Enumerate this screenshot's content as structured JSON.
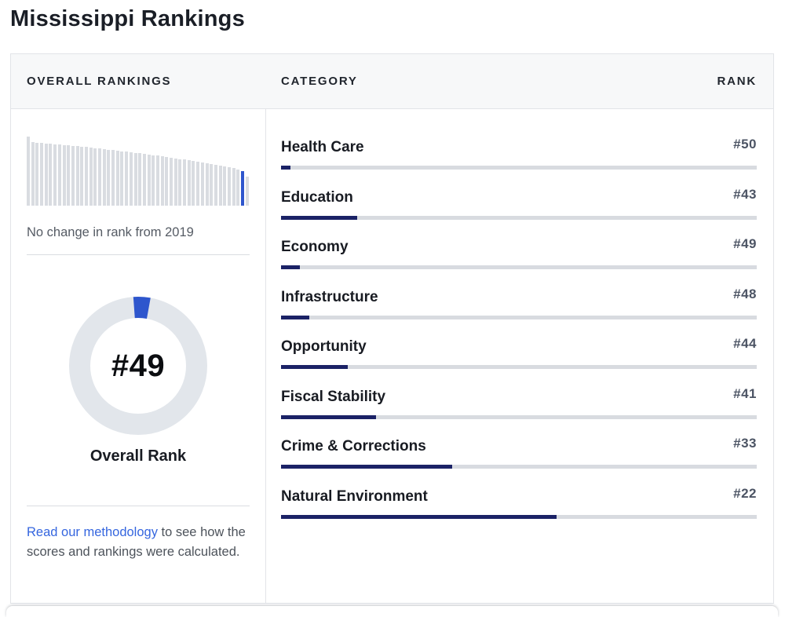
{
  "page": {
    "title": "Mississippi Rankings"
  },
  "left_panel": {
    "header": "OVERALL RANKINGS",
    "trend_text": "No change in rank from 2019",
    "overall_rank_value": "#49",
    "overall_rank_label": "Overall Rank",
    "methodology_link_text": "Read our methodology",
    "methodology_rest_text": " to see how the scores and rankings were calculated."
  },
  "right_panel": {
    "category_header": "CATEGORY",
    "rank_header": "RANK"
  },
  "sparkline": {
    "description": "Bar per state ordered from rank 1 to 50; Mississippi highlighted at rank 49",
    "highlight_index": 48,
    "heights": [
      88,
      81,
      80,
      80,
      79,
      79,
      78,
      78,
      77,
      77,
      76,
      76,
      75,
      75,
      74,
      73,
      73,
      72,
      71,
      71,
      70,
      69,
      69,
      68,
      67,
      67,
      66,
      65,
      64,
      64,
      63,
      62,
      61,
      60,
      59,
      59,
      58,
      57,
      56,
      55,
      54,
      53,
      52,
      51,
      50,
      49,
      48,
      46,
      44,
      37
    ]
  },
  "donut": {
    "value_label": "#49",
    "caption": "Overall Rank",
    "fill_percent": 4
  },
  "categories": [
    {
      "label": "Health Care",
      "rank": 50,
      "rank_display": "#50",
      "percent": 2
    },
    {
      "label": "Education",
      "rank": 43,
      "rank_display": "#43",
      "percent": 16
    },
    {
      "label": "Economy",
      "rank": 49,
      "rank_display": "#49",
      "percent": 4
    },
    {
      "label": "Infrastructure",
      "rank": 48,
      "rank_display": "#48",
      "percent": 6
    },
    {
      "label": "Opportunity",
      "rank": 44,
      "rank_display": "#44",
      "percent": 14
    },
    {
      "label": "Fiscal Stability",
      "rank": 41,
      "rank_display": "#41",
      "percent": 20
    },
    {
      "label": "Crime & Corrections",
      "rank": 33,
      "rank_display": "#33",
      "percent": 36
    },
    {
      "label": "Natural Environment",
      "rank": 22,
      "rank_display": "#22",
      "percent": 58
    }
  ],
  "colors": {
    "accent_blue": "#2e56cd",
    "navy_fill": "#1b2266",
    "track_gray": "#d8dbe0",
    "bar_gray": "#d9dce1",
    "ring_gray": "#e2e6eb",
    "link_blue": "#3566df",
    "header_bg": "#f7f8f9",
    "border": "#e2e4e8"
  }
}
